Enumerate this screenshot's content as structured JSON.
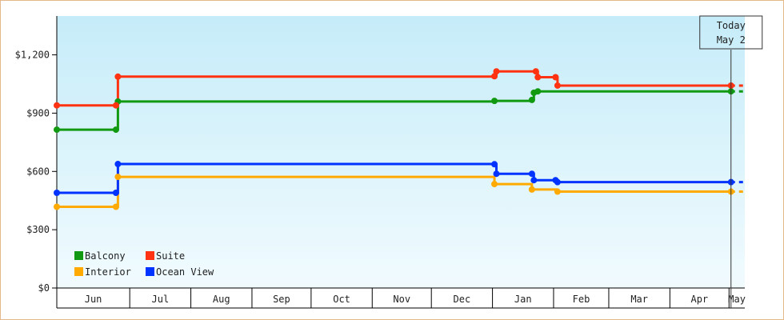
{
  "chart_data": {
    "type": "line",
    "step": true,
    "title": "",
    "xlabel": "",
    "ylabel": "",
    "ylim": [
      0,
      1400
    ],
    "y_ticks": [
      "$0",
      "$300",
      "$600",
      "$900",
      "$1,200"
    ],
    "y_tick_values": [
      0,
      300,
      600,
      900,
      1200
    ],
    "x_range": [
      "2025-05-25",
      "2026-05-09"
    ],
    "months": [
      {
        "label": "Jun",
        "start": "2025-05-25",
        "end": "2025-06-30"
      },
      {
        "label": "Jul",
        "start": "2025-07-01",
        "end": "2025-07-31"
      },
      {
        "label": "Aug",
        "start": "2025-08-01",
        "end": "2025-08-31"
      },
      {
        "label": "Sep",
        "start": "2025-09-01",
        "end": "2025-09-30"
      },
      {
        "label": "Oct",
        "start": "2025-10-01",
        "end": "2025-10-31"
      },
      {
        "label": "Nov",
        "start": "2025-11-01",
        "end": "2025-11-30"
      },
      {
        "label": "Dec",
        "start": "2025-12-01",
        "end": "2025-12-31"
      },
      {
        "label": "Jan",
        "start": "2026-01-01",
        "end": "2026-01-31"
      },
      {
        "label": "Feb",
        "start": "2026-02-01",
        "end": "2026-02-28"
      },
      {
        "label": "Mar",
        "start": "2026-03-01",
        "end": "2026-03-31"
      },
      {
        "label": "Apr",
        "start": "2026-04-01",
        "end": "2026-04-30"
      },
      {
        "label": "May",
        "start": "2026-05-01",
        "end": "2026-05-09"
      }
    ],
    "today": {
      "line1": "Today",
      "line2": "May 2",
      "date": "2026-05-02"
    },
    "legend_placement": "bottom-left",
    "series": [
      {
        "name": "Balcony",
        "color": "#119911",
        "points": [
          [
            "2025-05-25",
            815
          ],
          [
            "2025-06-24",
            815
          ],
          [
            "2025-06-25",
            960
          ],
          [
            "2026-01-02",
            963
          ],
          [
            "2026-01-21",
            968
          ],
          [
            "2026-01-22",
            1005
          ],
          [
            "2026-01-24",
            1012
          ],
          [
            "2026-05-02",
            1012
          ]
        ]
      },
      {
        "name": "Suite",
        "color": "#ff3311",
        "points": [
          [
            "2025-05-25",
            940
          ],
          [
            "2025-06-24",
            940
          ],
          [
            "2025-06-25",
            1088
          ],
          [
            "2026-01-02",
            1090
          ],
          [
            "2026-01-03",
            1115
          ],
          [
            "2026-01-23",
            1115
          ],
          [
            "2026-01-24",
            1085
          ],
          [
            "2026-02-02",
            1085
          ],
          [
            "2026-02-03",
            1042
          ],
          [
            "2026-05-02",
            1042
          ]
        ]
      },
      {
        "name": "Interior",
        "color": "#ffaa00",
        "points": [
          [
            "2025-05-25",
            418
          ],
          [
            "2025-06-24",
            418
          ],
          [
            "2025-06-25",
            572
          ],
          [
            "2026-01-02",
            535
          ],
          [
            "2026-01-21",
            507
          ],
          [
            "2026-02-03",
            496
          ],
          [
            "2026-05-02",
            496
          ]
        ]
      },
      {
        "name": "Ocean View",
        "color": "#0033ff",
        "points": [
          [
            "2025-05-25",
            490
          ],
          [
            "2025-06-24",
            490
          ],
          [
            "2025-06-25",
            638
          ],
          [
            "2026-01-02",
            637
          ],
          [
            "2026-01-03",
            588
          ],
          [
            "2026-01-21",
            588
          ],
          [
            "2026-01-22",
            555
          ],
          [
            "2026-02-02",
            555
          ],
          [
            "2026-02-03",
            545
          ],
          [
            "2026-05-02",
            545
          ]
        ]
      }
    ]
  }
}
